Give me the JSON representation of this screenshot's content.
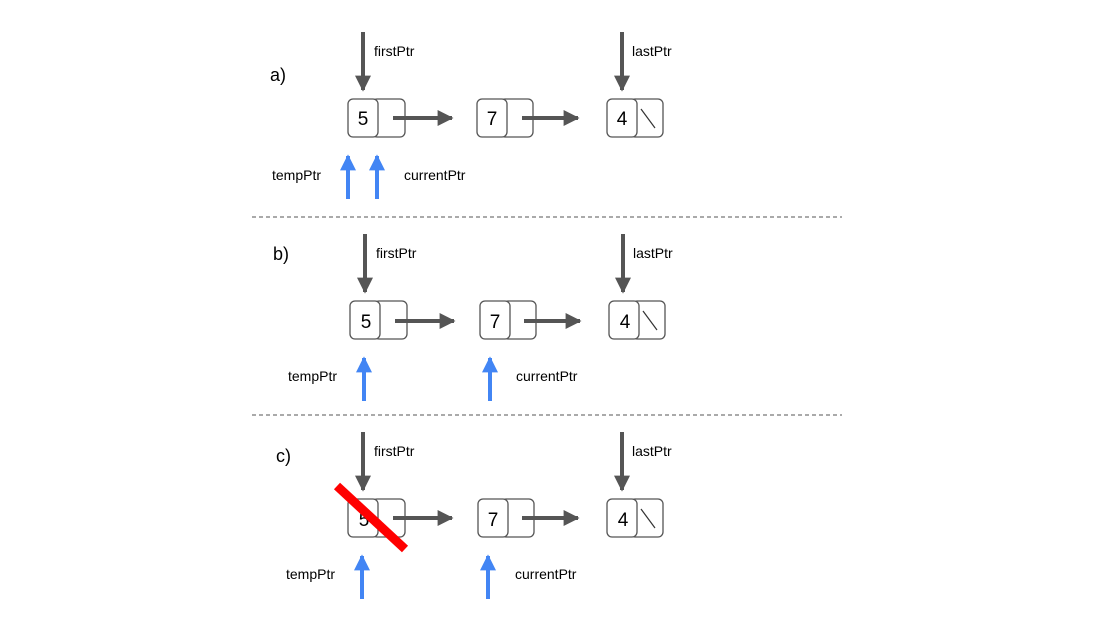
{
  "colors": {
    "pointer_dark": "#555555",
    "pointer_blue": "#4285f4",
    "delete_mark": "#ff0000",
    "separator": "#555555"
  },
  "panels": [
    {
      "label": "a)",
      "first_ptr": "firstPtr",
      "last_ptr": "lastPtr",
      "temp_ptr": "tempPtr",
      "current_ptr": "currentPtr",
      "nodes": [
        {
          "value": "5"
        },
        {
          "value": "7"
        },
        {
          "value": "4"
        }
      ],
      "temp_ptr_node": 1,
      "current_ptr_node": 1,
      "deleted_node": 0
    },
    {
      "label": "b)",
      "first_ptr": "firstPtr",
      "last_ptr": "lastPtr",
      "temp_ptr": "tempPtr",
      "current_ptr": "currentPtr",
      "nodes": [
        {
          "value": "5"
        },
        {
          "value": "7"
        },
        {
          "value": "4"
        }
      ],
      "temp_ptr_node": 1,
      "current_ptr_node": 2,
      "deleted_node": 0
    },
    {
      "label": "c)",
      "first_ptr": "firstPtr",
      "last_ptr": "lastPtr",
      "temp_ptr": "tempPtr",
      "current_ptr": "currentPtr",
      "nodes": [
        {
          "value": "5"
        },
        {
          "value": "7"
        },
        {
          "value": "4"
        }
      ],
      "temp_ptr_node": 1,
      "current_ptr_node": 2,
      "deleted_node": 1
    }
  ]
}
